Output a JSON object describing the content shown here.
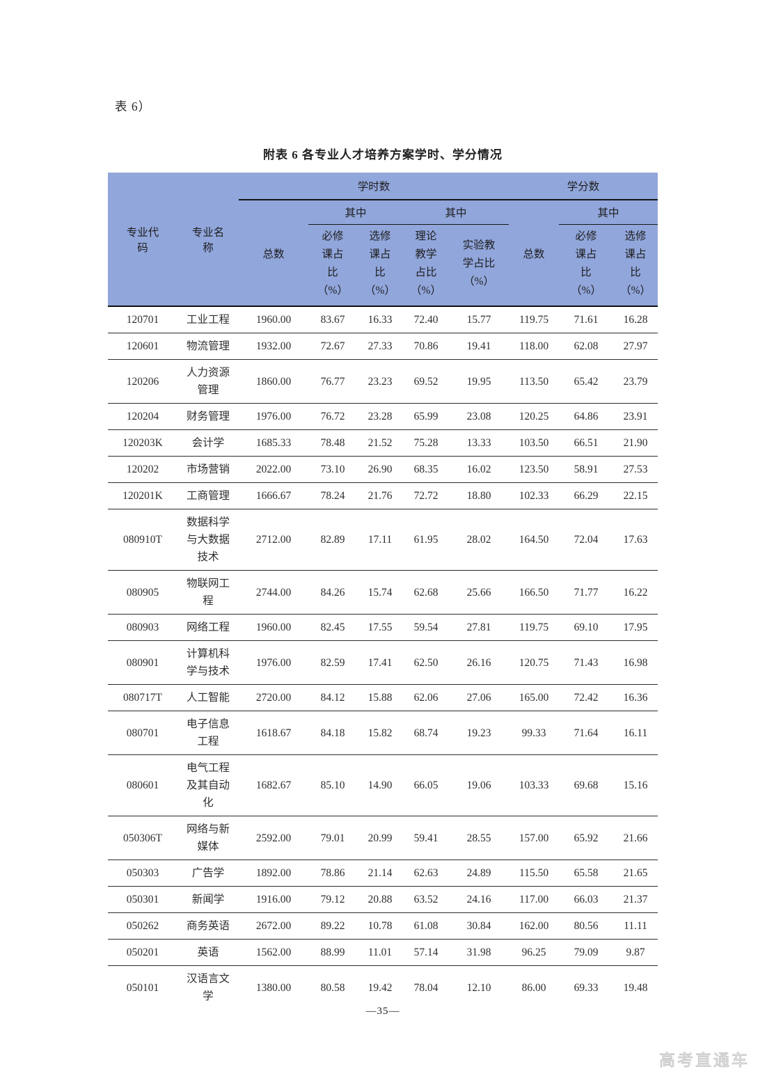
{
  "page": {
    "stub_text": "表 6）",
    "page_number": "—35—",
    "watermark": "高考直通车"
  },
  "colors": {
    "header_bg": "#91a6db",
    "text": "#262626",
    "watermark": "#c6c6c6"
  },
  "table": {
    "title": "附表 6 各专业人才培养方案学时、学分情况",
    "header": {
      "col_code": "专业代\n码",
      "col_name": "专业名\n称",
      "group_hours": "学时数",
      "group_credits": "学分数",
      "subgroup_among": "其中",
      "col_total": "总数",
      "col_required_pct": "必修\n课占\n比\n（%）",
      "col_elective_pct": "选修\n课占\n比\n（%）",
      "col_theory_pct": "理论\n教学\n占比\n（%）",
      "col_experiment_pct": "实验教\n学占比\n（%）"
    },
    "column_keys": [
      "major-code",
      "major-name",
      "hours-total",
      "hours-required-pct",
      "hours-elective-pct",
      "theory-pct",
      "experiment-pct",
      "credits-total",
      "credits-required-pct",
      "credits-elective-pct"
    ],
    "rows": [
      [
        "120701",
        "工业工程",
        "1960.00",
        "83.67",
        "16.33",
        "72.40",
        "15.77",
        "119.75",
        "71.61",
        "16.28"
      ],
      [
        "120601",
        "物流管理",
        "1932.00",
        "72.67",
        "27.33",
        "70.86",
        "19.41",
        "118.00",
        "62.08",
        "27.97"
      ],
      [
        "120206",
        "人力资源\n管理",
        "1860.00",
        "76.77",
        "23.23",
        "69.52",
        "19.95",
        "113.50",
        "65.42",
        "23.79"
      ],
      [
        "120204",
        "财务管理",
        "1976.00",
        "76.72",
        "23.28",
        "65.99",
        "23.08",
        "120.25",
        "64.86",
        "23.91"
      ],
      [
        "120203K",
        "会计学",
        "1685.33",
        "78.48",
        "21.52",
        "75.28",
        "13.33",
        "103.50",
        "66.51",
        "21.90"
      ],
      [
        "120202",
        "市场营销",
        "2022.00",
        "73.10",
        "26.90",
        "68.35",
        "16.02",
        "123.50",
        "58.91",
        "27.53"
      ],
      [
        "120201K",
        "工商管理",
        "1666.67",
        "78.24",
        "21.76",
        "72.72",
        "18.80",
        "102.33",
        "66.29",
        "22.15"
      ],
      [
        "080910T",
        "数据科学\n与大数据\n技术",
        "2712.00",
        "82.89",
        "17.11",
        "61.95",
        "28.02",
        "164.50",
        "72.04",
        "17.63"
      ],
      [
        "080905",
        "物联网工\n程",
        "2744.00",
        "84.26",
        "15.74",
        "62.68",
        "25.66",
        "166.50",
        "71.77",
        "16.22"
      ],
      [
        "080903",
        "网络工程",
        "1960.00",
        "82.45",
        "17.55",
        "59.54",
        "27.81",
        "119.75",
        "69.10",
        "17.95"
      ],
      [
        "080901",
        "计算机科\n学与技术",
        "1976.00",
        "82.59",
        "17.41",
        "62.50",
        "26.16",
        "120.75",
        "71.43",
        "16.98"
      ],
      [
        "080717T",
        "人工智能",
        "2720.00",
        "84.12",
        "15.88",
        "62.06",
        "27.06",
        "165.00",
        "72.42",
        "16.36"
      ],
      [
        "080701",
        "电子信息\n工程",
        "1618.67",
        "84.18",
        "15.82",
        "68.74",
        "19.23",
        "99.33",
        "71.64",
        "16.11"
      ],
      [
        "080601",
        "电气工程\n及其自动\n化",
        "1682.67",
        "85.10",
        "14.90",
        "66.05",
        "19.06",
        "103.33",
        "69.68",
        "15.16"
      ],
      [
        "050306T",
        "网络与新\n媒体",
        "2592.00",
        "79.01",
        "20.99",
        "59.41",
        "28.55",
        "157.00",
        "65.92",
        "21.66"
      ],
      [
        "050303",
        "广告学",
        "1892.00",
        "78.86",
        "21.14",
        "62.63",
        "24.89",
        "115.50",
        "65.58",
        "21.65"
      ],
      [
        "050301",
        "新闻学",
        "1916.00",
        "79.12",
        "20.88",
        "63.52",
        "24.16",
        "117.00",
        "66.03",
        "21.37"
      ],
      [
        "050262",
        "商务英语",
        "2672.00",
        "89.22",
        "10.78",
        "61.08",
        "30.84",
        "162.00",
        "80.56",
        "11.11"
      ],
      [
        "050201",
        "英语",
        "1562.00",
        "88.99",
        "11.01",
        "57.14",
        "31.98",
        "96.25",
        "79.09",
        "9.87"
      ],
      [
        "050101",
        "汉语言文\n学",
        "1380.00",
        "80.58",
        "19.42",
        "78.04",
        "12.10",
        "86.00",
        "69.33",
        "19.48"
      ]
    ]
  }
}
